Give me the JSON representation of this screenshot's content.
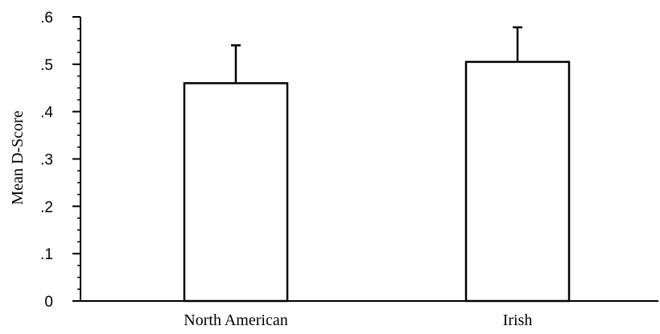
{
  "chart_data": {
    "type": "bar",
    "categories": [
      "North American",
      "Irish"
    ],
    "values": [
      0.46,
      0.505
    ],
    "error_upper": [
      0.54,
      0.578
    ],
    "ylabel": "Mean D-Score",
    "xlabel": "",
    "ylim": [
      0,
      0.6
    ],
    "yticks": [
      0,
      0.1,
      0.2,
      0.3,
      0.4,
      0.5,
      0.6
    ],
    "ytick_labels": [
      "0",
      ".1",
      ".2",
      ".3",
      ".4",
      ".5",
      ".6"
    ],
    "grid": false,
    "legend": "none",
    "colors": {
      "bar_fill": "#ffffff",
      "bar_stroke": "#000000",
      "axis": "#000000"
    }
  }
}
